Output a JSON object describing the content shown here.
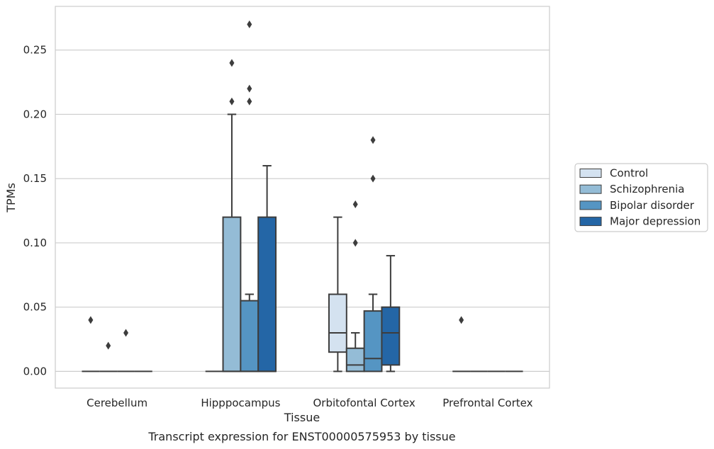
{
  "chart_data": {
    "type": "boxplot",
    "caption": "Transcript expression for ENST00000575953 by tissue",
    "xlabel": "Tissue",
    "ylabel": "TPMs",
    "ylim": [
      -0.013,
      0.284
    ],
    "yticks": [
      0.0,
      0.05,
      0.1,
      0.15,
      0.2,
      0.25
    ],
    "ytick_labels": [
      "0.00",
      "0.05",
      "0.10",
      "0.15",
      "0.20",
      "0.25"
    ],
    "grid": "horizontal",
    "legend_position": "right",
    "categories": [
      "Cerebellum",
      "Hipppocampus",
      "Orbitofontal Cortex",
      "Prefrontal Cortex"
    ],
    "series": [
      {
        "name": "Control",
        "color": "#d4e2f0",
        "boxes": [
          {
            "min": 0,
            "q1": 0,
            "median": 0,
            "q3": 0,
            "max": 0,
            "outliers": [
              0.04
            ]
          },
          {
            "min": 0,
            "q1": 0,
            "median": 0,
            "q3": 0,
            "max": 0,
            "outliers": []
          },
          {
            "min": 0,
            "q1": 0.015,
            "median": 0.03,
            "q3": 0.06,
            "max": 0.12,
            "outliers": []
          },
          {
            "min": 0,
            "q1": 0,
            "median": 0,
            "q3": 0,
            "max": 0,
            "outliers": [
              0.04
            ]
          }
        ]
      },
      {
        "name": "Schizophrenia",
        "color": "#94bcd6",
        "boxes": [
          {
            "min": 0,
            "q1": 0,
            "median": 0,
            "q3": 0,
            "max": 0,
            "outliers": [
              0.02
            ]
          },
          {
            "min": 0,
            "q1": 0,
            "median": 0,
            "q3": 0.12,
            "max": 0.2,
            "outliers": [
              0.21,
              0.24
            ]
          },
          {
            "min": 0,
            "q1": 0,
            "median": 0.005,
            "q3": 0.018,
            "max": 0.03,
            "outliers": [
              0.1,
              0.13
            ]
          },
          {
            "min": 0,
            "q1": 0,
            "median": 0,
            "q3": 0,
            "max": 0,
            "outliers": []
          }
        ]
      },
      {
        "name": "Bipolar disorder",
        "color": "#5595c3",
        "boxes": [
          {
            "min": 0,
            "q1": 0,
            "median": 0,
            "q3": 0,
            "max": 0,
            "outliers": [
              0.03
            ]
          },
          {
            "min": 0,
            "q1": 0,
            "median": 0,
            "q3": 0.055,
            "max": 0.06,
            "outliers": [
              0.21,
              0.22,
              0.27
            ]
          },
          {
            "min": 0,
            "q1": 0,
            "median": 0.01,
            "q3": 0.047,
            "max": 0.06,
            "outliers": [
              0.15,
              0.18
            ]
          },
          {
            "min": 0,
            "q1": 0,
            "median": 0,
            "q3": 0,
            "max": 0,
            "outliers": []
          }
        ]
      },
      {
        "name": "Major depression",
        "color": "#2466a6",
        "boxes": [
          {
            "min": 0,
            "q1": 0,
            "median": 0,
            "q3": 0,
            "max": 0,
            "outliers": []
          },
          {
            "min": 0,
            "q1": 0,
            "median": 0,
            "q3": 0.12,
            "max": 0.16,
            "outliers": []
          },
          {
            "min": 0,
            "q1": 0.005,
            "median": 0.03,
            "q3": 0.05,
            "max": 0.09,
            "outliers": []
          },
          {
            "min": 0,
            "q1": 0,
            "median": 0,
            "q3": 0,
            "max": 0,
            "outliers": []
          }
        ]
      }
    ]
  }
}
